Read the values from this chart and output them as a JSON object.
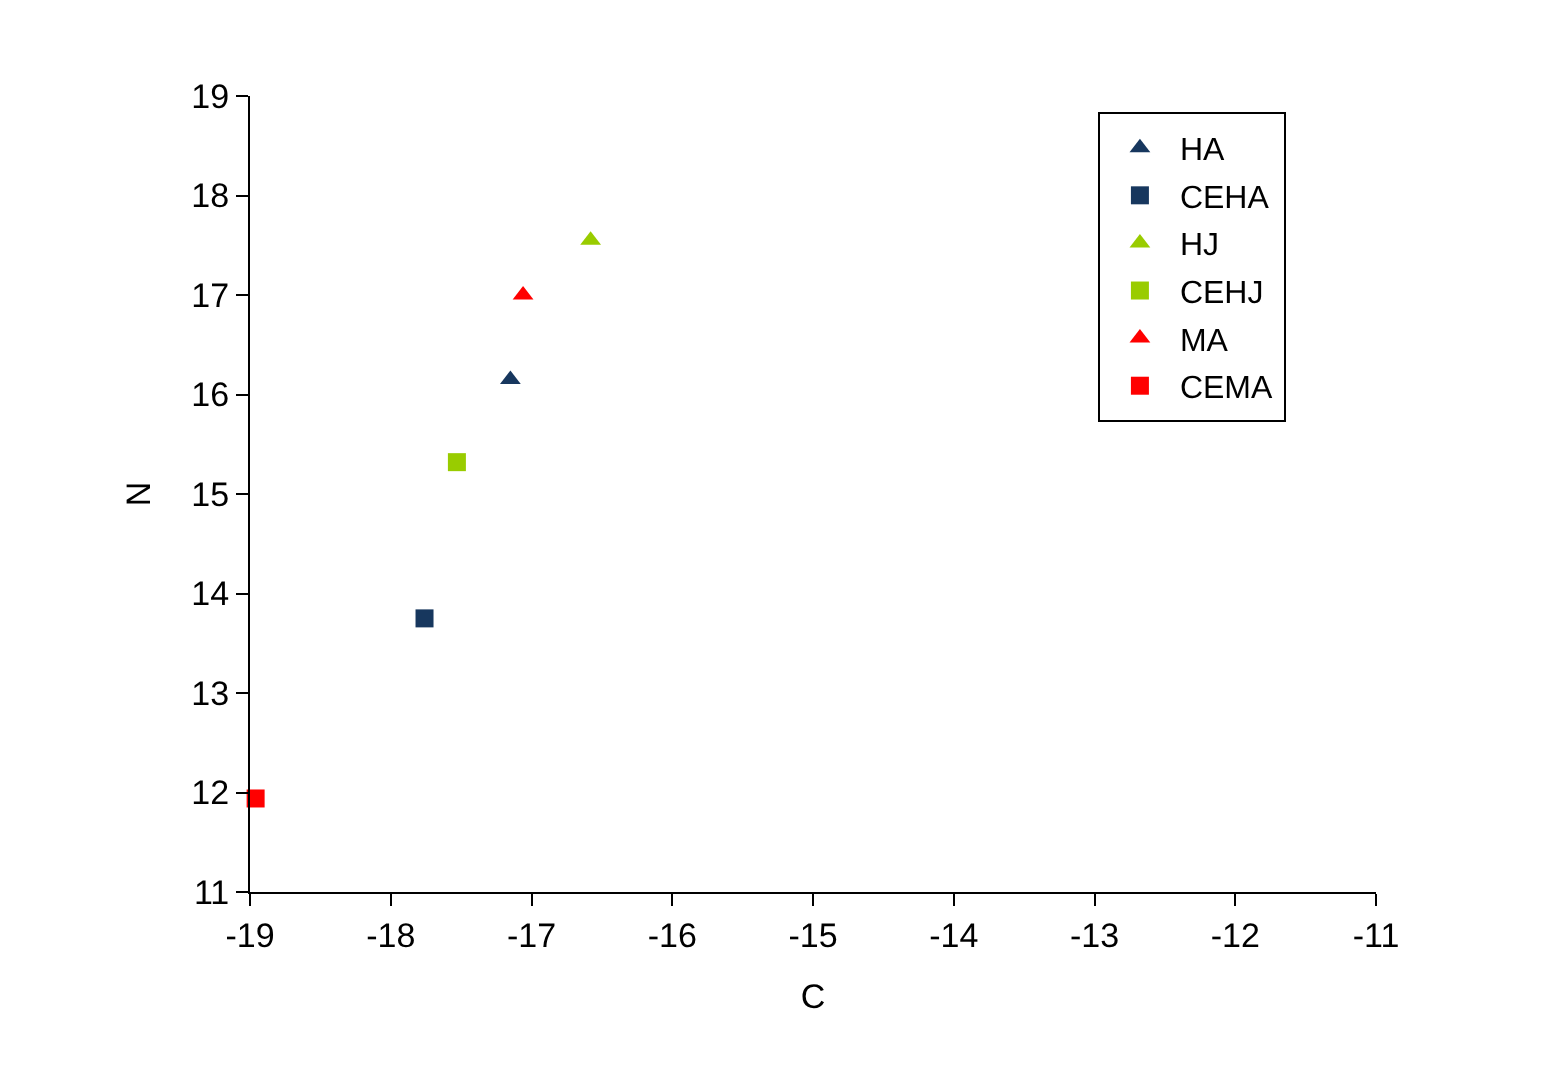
{
  "chart_data": {
    "type": "scatter",
    "xlabel": "C",
    "ylabel": "N",
    "xlim": [
      -19,
      -11
    ],
    "xticks": [
      -19,
      -18,
      -17,
      -16,
      -15,
      -14,
      -13,
      -12,
      -11
    ],
    "ylim": [
      11,
      19
    ],
    "yticks": [
      11,
      12,
      13,
      14,
      15,
      16,
      17,
      18,
      19
    ],
    "legend": "top right",
    "series": [
      {
        "name": "HA",
        "color": "#17375e",
        "marker": "triangle",
        "x": [
          -17.15
        ],
        "values": [
          16.15
        ]
      },
      {
        "name": "CEHA",
        "color": "#17375e",
        "marker": "square",
        "x": [
          -17.76
        ],
        "values": [
          13.75
        ]
      },
      {
        "name": "HJ",
        "color": "#99cc00",
        "marker": "triangle",
        "x": [
          -16.58
        ],
        "values": [
          17.55
        ]
      },
      {
        "name": "CEHJ",
        "color": "#99cc00",
        "marker": "square",
        "x": [
          -17.53
        ],
        "values": [
          15.32
        ]
      },
      {
        "name": "MA",
        "color": "#ff0000",
        "marker": "triangle",
        "x": [
          -17.06
        ],
        "values": [
          17.0
        ]
      },
      {
        "name": "CEMA",
        "color": "#ff0000",
        "marker": "square",
        "x": [
          -18.96
        ],
        "values": [
          11.94
        ]
      }
    ]
  }
}
